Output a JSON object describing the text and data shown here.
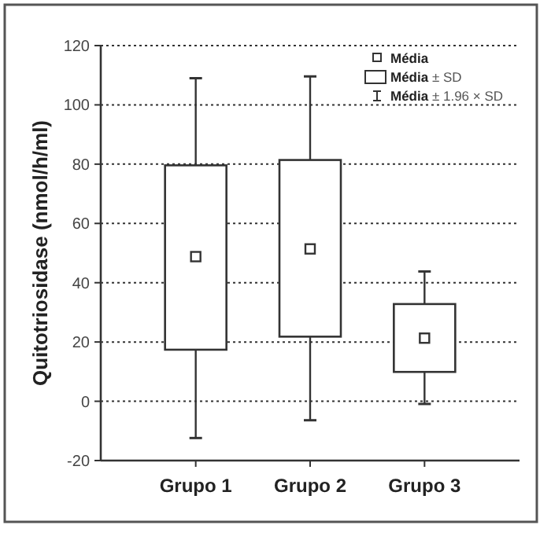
{
  "chart_data": {
    "type": "box",
    "ylabel": "Quitotriosidase (nmol/h/ml)",
    "categories": [
      "Grupo 1",
      "Grupo 2",
      "Grupo 3"
    ],
    "boxes": [
      {
        "low": -12.4,
        "q1": 17.4,
        "median": 48.8,
        "q3": 79.6,
        "high": 109
      },
      {
        "low": -6.4,
        "q1": 21.8,
        "median": 51.4,
        "q3": 81.4,
        "high": 109.6
      },
      {
        "low": -0.9,
        "q1": 9.9,
        "median": 21.3,
        "q3": 32.8,
        "high": 43.8
      }
    ],
    "ylim": [
      -20,
      120
    ],
    "yticks": [
      -20,
      0,
      20,
      40,
      60,
      80,
      100,
      120
    ],
    "grid": "y",
    "annotations": [
      "Média",
      "Média ± SD",
      "Média ± 1.96 × SD"
    ]
  }
}
